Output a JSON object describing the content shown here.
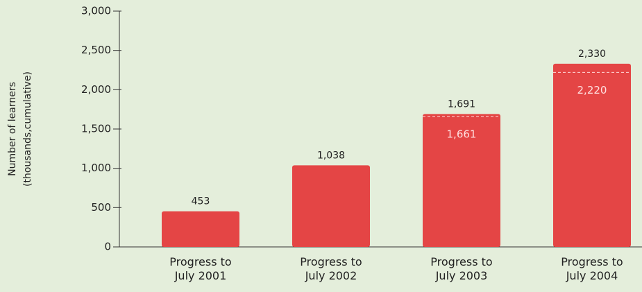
{
  "chart_data": {
    "type": "bar",
    "ylabel": [
      "Number of learners",
      "(thousands,cumulative)"
    ],
    "categories": [
      "Progress to July 2001",
      "Progress to July 2002",
      "Progress to July 2003",
      "Progress to July 2004"
    ],
    "values": [
      453,
      1038,
      1691,
      2330
    ],
    "value_labels": [
      "453",
      "1,038",
      "1,691",
      "2,330"
    ],
    "marker_values": [
      null,
      null,
      1661,
      2220
    ],
    "marker_value_labels": [
      null,
      null,
      "1,661",
      "2,220"
    ],
    "color": "#e44545",
    "ylim": [
      0,
      3000
    ],
    "yticks": [
      0,
      {
        "value": 500,
        "label": "500"
      },
      {
        "value": 1000,
        "label": "1,000"
      },
      {
        "value": 1500,
        "label": "1,500"
      },
      {
        "value": 2000,
        "label": "2,000"
      },
      {
        "value": 2500,
        "label": "2,500"
      },
      {
        "value": 3000,
        "label": "3,000"
      }
    ]
  }
}
